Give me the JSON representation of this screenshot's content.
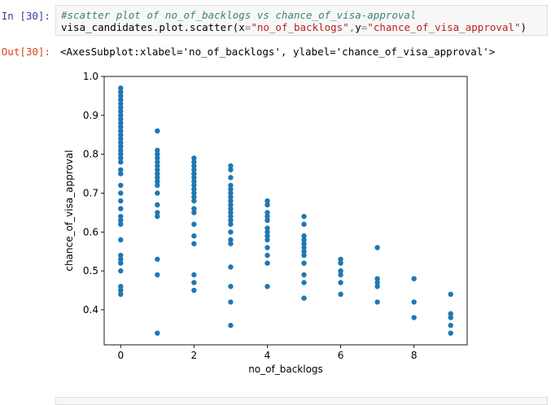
{
  "cell_in": {
    "prompt": "In [30]:",
    "comment": "#scatter plot of no_of_backlogs vs chance_of_visa-approval",
    "code_prefix": "visa_candidates.plot.scatter(",
    "arg_x_name": "x",
    "arg_x_value": "\"no_of_backlogs\"",
    "arg_y_name": "y",
    "arg_y_value": "\"chance_of_visa_approval\"",
    "code_suffix": ")"
  },
  "cell_out": {
    "prompt": "Out[30]:",
    "text": "<AxesSubplot:xlabel='no_of_backlogs', ylabel='chance_of_visa_approval'>"
  },
  "colors": {
    "point": "#1f77b4",
    "prompt_in": "#303f9f",
    "prompt_out": "#d84315"
  },
  "chart_data": {
    "type": "scatter",
    "title": "",
    "xlabel": "no_of_backlogs",
    "ylabel": "chance_of_visa_approval",
    "xlim": [
      -0.45,
      9.45
    ],
    "ylim": [
      0.31,
      1.0
    ],
    "xticks": [
      0,
      2,
      4,
      6,
      8
    ],
    "yticks": [
      0.4,
      0.5,
      0.6,
      0.7,
      0.8,
      0.9,
      1.0
    ],
    "ytick_labels": [
      "0.4",
      "0.5",
      "0.6",
      "0.7",
      "0.8",
      "0.9",
      "1.0"
    ],
    "grid": false,
    "points": [
      [
        0,
        0.97
      ],
      [
        0,
        0.96
      ],
      [
        0,
        0.95
      ],
      [
        0,
        0.94
      ],
      [
        0,
        0.93
      ],
      [
        0,
        0.92
      ],
      [
        0,
        0.91
      ],
      [
        0,
        0.9
      ],
      [
        0,
        0.89
      ],
      [
        0,
        0.88
      ],
      [
        0,
        0.87
      ],
      [
        0,
        0.86
      ],
      [
        0,
        0.85
      ],
      [
        0,
        0.84
      ],
      [
        0,
        0.83
      ],
      [
        0,
        0.82
      ],
      [
        0,
        0.81
      ],
      [
        0,
        0.8
      ],
      [
        0,
        0.79
      ],
      [
        0,
        0.78
      ],
      [
        0,
        0.76
      ],
      [
        0,
        0.75
      ],
      [
        0,
        0.72
      ],
      [
        0,
        0.7
      ],
      [
        0,
        0.68
      ],
      [
        0,
        0.66
      ],
      [
        0,
        0.64
      ],
      [
        0,
        0.63
      ],
      [
        0,
        0.62
      ],
      [
        0,
        0.58
      ],
      [
        0,
        0.54
      ],
      [
        0,
        0.53
      ],
      [
        0,
        0.52
      ],
      [
        0,
        0.5
      ],
      [
        0,
        0.46
      ],
      [
        0,
        0.45
      ],
      [
        0,
        0.44
      ],
      [
        1,
        0.86
      ],
      [
        1,
        0.81
      ],
      [
        1,
        0.8
      ],
      [
        1,
        0.79
      ],
      [
        1,
        0.78
      ],
      [
        1,
        0.77
      ],
      [
        1,
        0.76
      ],
      [
        1,
        0.75
      ],
      [
        1,
        0.74
      ],
      [
        1,
        0.73
      ],
      [
        1,
        0.72
      ],
      [
        1,
        0.7
      ],
      [
        1,
        0.67
      ],
      [
        1,
        0.65
      ],
      [
        1,
        0.64
      ],
      [
        1,
        0.53
      ],
      [
        1,
        0.49
      ],
      [
        1,
        0.34
      ],
      [
        2,
        0.79
      ],
      [
        2,
        0.78
      ],
      [
        2,
        0.77
      ],
      [
        2,
        0.76
      ],
      [
        2,
        0.75
      ],
      [
        2,
        0.74
      ],
      [
        2,
        0.73
      ],
      [
        2,
        0.72
      ],
      [
        2,
        0.71
      ],
      [
        2,
        0.7
      ],
      [
        2,
        0.69
      ],
      [
        2,
        0.68
      ],
      [
        2,
        0.66
      ],
      [
        2,
        0.65
      ],
      [
        2,
        0.62
      ],
      [
        2,
        0.59
      ],
      [
        2,
        0.57
      ],
      [
        2,
        0.49
      ],
      [
        2,
        0.47
      ],
      [
        2,
        0.45
      ],
      [
        3,
        0.77
      ],
      [
        3,
        0.76
      ],
      [
        3,
        0.74
      ],
      [
        3,
        0.72
      ],
      [
        3,
        0.71
      ],
      [
        3,
        0.7
      ],
      [
        3,
        0.69
      ],
      [
        3,
        0.68
      ],
      [
        3,
        0.67
      ],
      [
        3,
        0.66
      ],
      [
        3,
        0.65
      ],
      [
        3,
        0.64
      ],
      [
        3,
        0.63
      ],
      [
        3,
        0.62
      ],
      [
        3,
        0.6
      ],
      [
        3,
        0.58
      ],
      [
        3,
        0.57
      ],
      [
        3,
        0.51
      ],
      [
        3,
        0.46
      ],
      [
        3,
        0.42
      ],
      [
        3,
        0.36
      ],
      [
        4,
        0.68
      ],
      [
        4,
        0.67
      ],
      [
        4,
        0.65
      ],
      [
        4,
        0.64
      ],
      [
        4,
        0.63
      ],
      [
        4,
        0.61
      ],
      [
        4,
        0.6
      ],
      [
        4,
        0.59
      ],
      [
        4,
        0.58
      ],
      [
        4,
        0.56
      ],
      [
        4,
        0.54
      ],
      [
        4,
        0.52
      ],
      [
        4,
        0.46
      ],
      [
        5,
        0.64
      ],
      [
        5,
        0.62
      ],
      [
        5,
        0.59
      ],
      [
        5,
        0.58
      ],
      [
        5,
        0.57
      ],
      [
        5,
        0.56
      ],
      [
        5,
        0.55
      ],
      [
        5,
        0.54
      ],
      [
        5,
        0.52
      ],
      [
        5,
        0.49
      ],
      [
        5,
        0.47
      ],
      [
        5,
        0.43
      ],
      [
        6,
        0.53
      ],
      [
        6,
        0.52
      ],
      [
        6,
        0.5
      ],
      [
        6,
        0.49
      ],
      [
        6,
        0.47
      ],
      [
        6,
        0.44
      ],
      [
        7,
        0.56
      ],
      [
        7,
        0.48
      ],
      [
        7,
        0.47
      ],
      [
        7,
        0.46
      ],
      [
        7,
        0.42
      ],
      [
        8,
        0.48
      ],
      [
        8,
        0.42
      ],
      [
        8,
        0.38
      ],
      [
        9,
        0.44
      ],
      [
        9,
        0.39
      ],
      [
        9,
        0.38
      ],
      [
        9,
        0.36
      ],
      [
        9,
        0.34
      ]
    ]
  }
}
